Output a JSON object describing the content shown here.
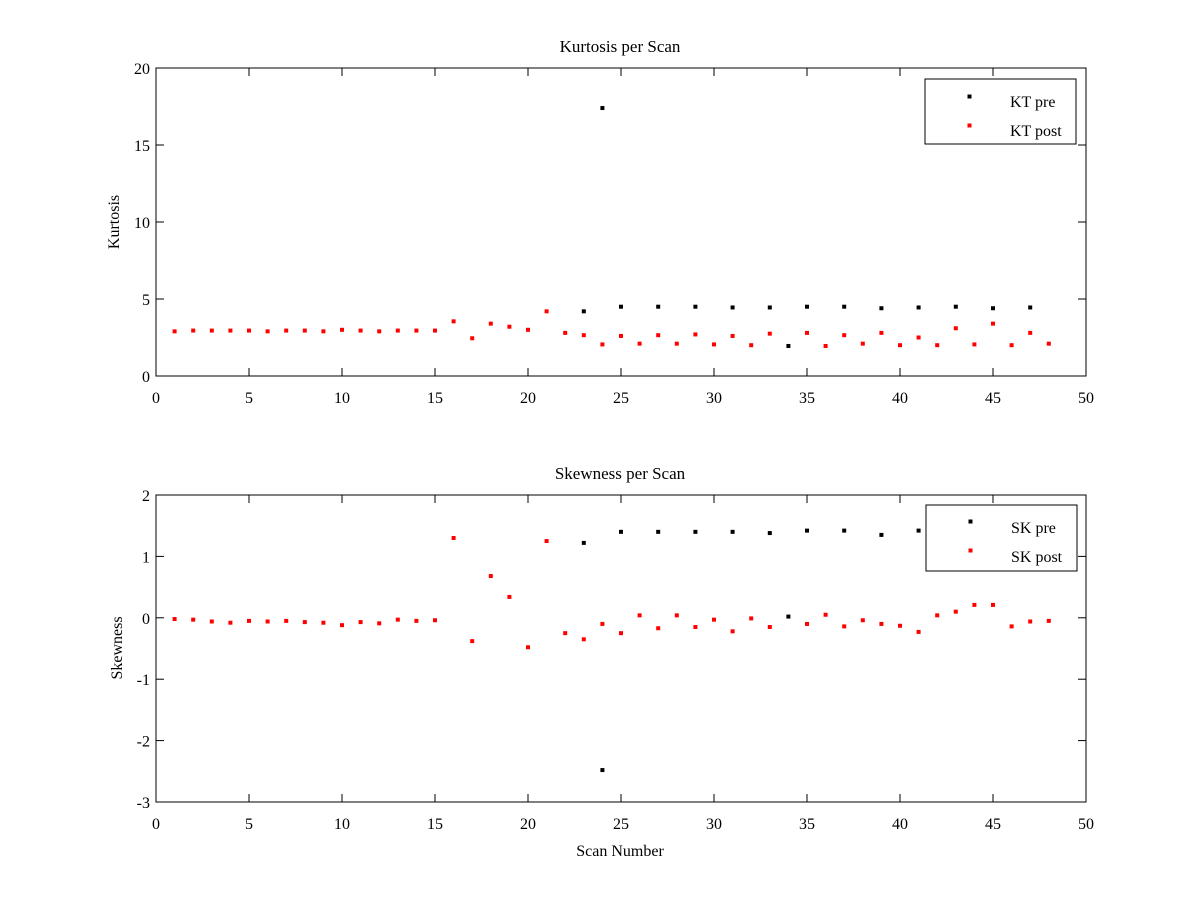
{
  "chart_data": [
    {
      "type": "scatter",
      "title": "Kurtosis per Scan",
      "xlabel": "",
      "ylabel": "Kurtosis",
      "xlim": [
        0,
        50
      ],
      "ylim": [
        0,
        20
      ],
      "xticks": [
        0,
        5,
        10,
        15,
        20,
        25,
        30,
        35,
        40,
        45,
        50
      ],
      "yticks": [
        0,
        5,
        10,
        15,
        20
      ],
      "grid": false,
      "legend_position": "top-right",
      "series": [
        {
          "name": "KT pre",
          "color": "#000000",
          "points": [
            [
              23,
              4.2
            ],
            [
              24,
              17.4
            ],
            [
              25,
              4.5
            ],
            [
              27,
              4.5
            ],
            [
              29,
              4.5
            ],
            [
              31,
              4.45
            ],
            [
              33,
              4.45
            ],
            [
              34,
              1.95
            ],
            [
              35,
              4.5
            ],
            [
              37,
              4.5
            ],
            [
              39,
              4.4
            ],
            [
              41,
              4.45
            ],
            [
              43,
              4.5
            ],
            [
              45,
              4.4
            ],
            [
              47,
              4.45
            ]
          ]
        },
        {
          "name": "KT post",
          "color": "#ff0000",
          "points": [
            [
              1,
              2.9
            ],
            [
              2,
              2.95
            ],
            [
              3,
              2.95
            ],
            [
              4,
              2.95
            ],
            [
              5,
              2.95
            ],
            [
              6,
              2.9
            ],
            [
              7,
              2.95
            ],
            [
              8,
              2.95
            ],
            [
              9,
              2.9
            ],
            [
              10,
              3.0
            ],
            [
              11,
              2.95
            ],
            [
              12,
              2.9
            ],
            [
              13,
              2.95
            ],
            [
              14,
              2.95
            ],
            [
              15,
              2.95
            ],
            [
              16,
              3.55
            ],
            [
              17,
              2.45
            ],
            [
              18,
              3.4
            ],
            [
              19,
              3.2
            ],
            [
              20,
              3.0
            ],
            [
              21,
              4.2
            ],
            [
              22,
              2.8
            ],
            [
              23,
              2.65
            ],
            [
              24,
              2.05
            ],
            [
              25,
              2.6
            ],
            [
              26,
              2.1
            ],
            [
              27,
              2.65
            ],
            [
              28,
              2.1
            ],
            [
              29,
              2.7
            ],
            [
              30,
              2.05
            ],
            [
              31,
              2.6
            ],
            [
              32,
              2.0
            ],
            [
              33,
              2.75
            ],
            [
              35,
              2.8
            ],
            [
              36,
              1.95
            ],
            [
              37,
              2.65
            ],
            [
              38,
              2.1
            ],
            [
              39,
              2.8
            ],
            [
              40,
              2.0
            ],
            [
              41,
              2.5
            ],
            [
              42,
              2.0
            ],
            [
              43,
              3.1
            ],
            [
              44,
              2.05
            ],
            [
              45,
              3.4
            ],
            [
              46,
              2.0
            ],
            [
              47,
              2.8
            ],
            [
              48,
              2.1
            ]
          ]
        }
      ]
    },
    {
      "type": "scatter",
      "title": "Skewness per Scan",
      "xlabel": "Scan Number",
      "ylabel": "Skewness",
      "xlim": [
        0,
        50
      ],
      "ylim": [
        -3,
        2
      ],
      "xticks": [
        0,
        5,
        10,
        15,
        20,
        25,
        30,
        35,
        40,
        45,
        50
      ],
      "yticks": [
        -3,
        -2,
        -1,
        0,
        1,
        2
      ],
      "grid": false,
      "legend_position": "top-right",
      "series": [
        {
          "name": "SK pre",
          "color": "#000000",
          "points": [
            [
              23,
              1.22
            ],
            [
              24,
              -2.48
            ],
            [
              25,
              1.4
            ],
            [
              27,
              1.4
            ],
            [
              29,
              1.4
            ],
            [
              31,
              1.4
            ],
            [
              33,
              1.38
            ],
            [
              34,
              0.02
            ],
            [
              35,
              1.42
            ],
            [
              37,
              1.42
            ],
            [
              39,
              1.35
            ],
            [
              41,
              1.42
            ]
          ]
        },
        {
          "name": "SK post",
          "color": "#ff0000",
          "points": [
            [
              1,
              -0.02
            ],
            [
              2,
              -0.03
            ],
            [
              3,
              -0.06
            ],
            [
              4,
              -0.08
            ],
            [
              5,
              -0.05
            ],
            [
              6,
              -0.06
            ],
            [
              7,
              -0.05
            ],
            [
              8,
              -0.07
            ],
            [
              9,
              -0.08
            ],
            [
              10,
              -0.12
            ],
            [
              11,
              -0.07
            ],
            [
              12,
              -0.09
            ],
            [
              13,
              -0.03
            ],
            [
              14,
              -0.05
            ],
            [
              15,
              -0.04
            ],
            [
              16,
              1.3
            ],
            [
              17,
              -0.38
            ],
            [
              18,
              0.68
            ],
            [
              19,
              0.34
            ],
            [
              20,
              -0.48
            ],
            [
              21,
              1.25
            ],
            [
              22,
              -0.25
            ],
            [
              23,
              -0.35
            ],
            [
              24,
              -0.1
            ],
            [
              25,
              -0.25
            ],
            [
              26,
              0.04
            ],
            [
              27,
              -0.17
            ],
            [
              28,
              0.04
            ],
            [
              29,
              -0.15
            ],
            [
              30,
              -0.03
            ],
            [
              31,
              -0.22
            ],
            [
              32,
              -0.01
            ],
            [
              33,
              -0.15
            ],
            [
              35,
              -0.1
            ],
            [
              36,
              0.05
            ],
            [
              37,
              -0.14
            ],
            [
              38,
              -0.04
            ],
            [
              39,
              -0.1
            ],
            [
              40,
              -0.13
            ],
            [
              41,
              -0.23
            ],
            [
              42,
              0.04
            ],
            [
              43,
              0.1
            ],
            [
              44,
              0.21
            ],
            [
              45,
              0.21
            ],
            [
              46,
              -0.14
            ],
            [
              47,
              -0.06
            ],
            [
              48,
              -0.05
            ]
          ]
        }
      ]
    }
  ]
}
